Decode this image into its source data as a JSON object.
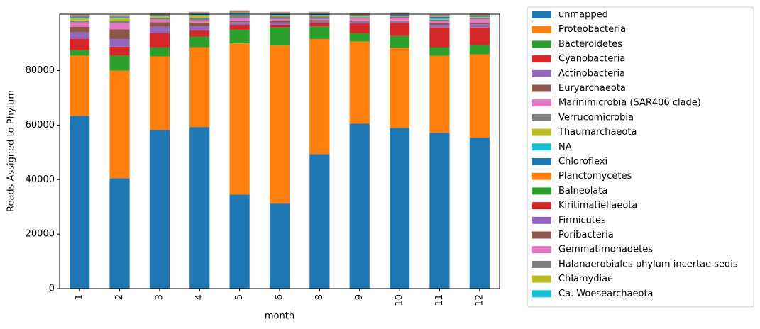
{
  "chart_data": {
    "type": "stacked_bar",
    "x_label": "month",
    "y_label": "Reads Assigned to Phylum",
    "categories": [
      "1",
      "2",
      "3",
      "4",
      "5",
      "6",
      "8",
      "9",
      "10",
      "11",
      "12"
    ],
    "ylim": [
      0,
      100700
    ],
    "yticks": [
      0,
      20000,
      40000,
      60000,
      80000
    ],
    "series": [
      {
        "name": "unmapped",
        "color": "#1f77b4",
        "values": [
          63400,
          40500,
          58200,
          59300,
          34500,
          31200,
          49300,
          60500,
          59000,
          57200,
          55400
        ]
      },
      {
        "name": "Proteobacteria",
        "color": "#ff7f0e",
        "values": [
          22100,
          39500,
          27000,
          29300,
          55500,
          58000,
          42300,
          30200,
          29400,
          28200,
          30600
        ]
      },
      {
        "name": "Bacteroidetes",
        "color": "#2ca02c",
        "values": [
          2000,
          5500,
          3300,
          3900,
          5000,
          6600,
          4600,
          3000,
          4300,
          3200,
          3400
        ]
      },
      {
        "name": "Cyanobacteria",
        "color": "#d62728",
        "values": [
          4200,
          3300,
          5200,
          2200,
          1800,
          1000,
          1200,
          3600,
          4800,
          7200,
          6400
        ]
      },
      {
        "name": "Actinobacteria",
        "color": "#9467bd",
        "values": [
          2300,
          2800,
          2400,
          1600,
          1000,
          800,
          500,
          600,
          500,
          1000,
          1200
        ]
      },
      {
        "name": "Euryarchaeota",
        "color": "#8c564b",
        "values": [
          2100,
          3500,
          1600,
          1300,
          500,
          600,
          600,
          500,
          400,
          600,
          500
        ]
      },
      {
        "name": "Marinimicrobia (SAR406 clade)",
        "color": "#e377c2",
        "values": [
          1600,
          2400,
          1000,
          800,
          1000,
          700,
          400,
          800,
          1000,
          800,
          1300
        ]
      },
      {
        "name": "Verrucomicrobia",
        "color": "#7f7f7f",
        "values": [
          700,
          600,
          700,
          1000,
          1200,
          1000,
          1000,
          400,
          400,
          500,
          600
        ]
      },
      {
        "name": "Thaumarchaeota",
        "color": "#bcbd22",
        "values": [
          800,
          1000,
          500,
          800,
          300,
          300,
          300,
          300,
          200,
          200,
          200
        ]
      },
      {
        "name": "NA",
        "color": "#17becf",
        "values": [
          300,
          200,
          200,
          200,
          200,
          200,
          200,
          200,
          200,
          400,
          200
        ]
      },
      {
        "name": "Chloroflexi",
        "color": "#1f77b4",
        "values": [
          300,
          300,
          300,
          300,
          300,
          300,
          300,
          300,
          300,
          400,
          300
        ]
      },
      {
        "name": "Planctomycetes",
        "color": "#ff7f0e",
        "values": [
          200,
          200,
          200,
          200,
          200,
          200,
          200,
          200,
          200,
          200,
          200
        ]
      },
      {
        "name": "Balneolata",
        "color": "#2ca02c",
        "values": [
          100,
          100,
          100,
          100,
          100,
          100,
          100,
          100,
          100,
          100,
          100
        ]
      },
      {
        "name": "Kiritimatiellaeota",
        "color": "#d62728",
        "values": [
          100,
          100,
          100,
          100,
          100,
          100,
          100,
          100,
          100,
          100,
          100
        ]
      },
      {
        "name": "Firmicutes",
        "color": "#9467bd",
        "values": [
          100,
          100,
          100,
          100,
          100,
          100,
          100,
          100,
          100,
          100,
          100
        ]
      },
      {
        "name": "Poribacteria",
        "color": "#8c564b",
        "values": [
          100,
          100,
          100,
          100,
          100,
          100,
          100,
          100,
          100,
          100,
          100
        ]
      },
      {
        "name": "Gemmatimonadetes",
        "color": "#e377c2",
        "values": [
          100,
          100,
          100,
          100,
          100,
          100,
          100,
          100,
          100,
          100,
          100
        ]
      },
      {
        "name": "Halanaerobiales phylum incertae sedis",
        "color": "#7f7f7f",
        "values": [
          50,
          50,
          50,
          50,
          50,
          50,
          50,
          50,
          50,
          50,
          50
        ]
      },
      {
        "name": "Chlamydiae",
        "color": "#bcbd22",
        "values": [
          50,
          50,
          50,
          50,
          50,
          50,
          50,
          50,
          50,
          50,
          50
        ]
      },
      {
        "name": "Ca. Woesearchaeota",
        "color": "#17becf",
        "values": [
          50,
          50,
          50,
          50,
          50,
          50,
          50,
          50,
          50,
          50,
          50
        ]
      }
    ]
  }
}
